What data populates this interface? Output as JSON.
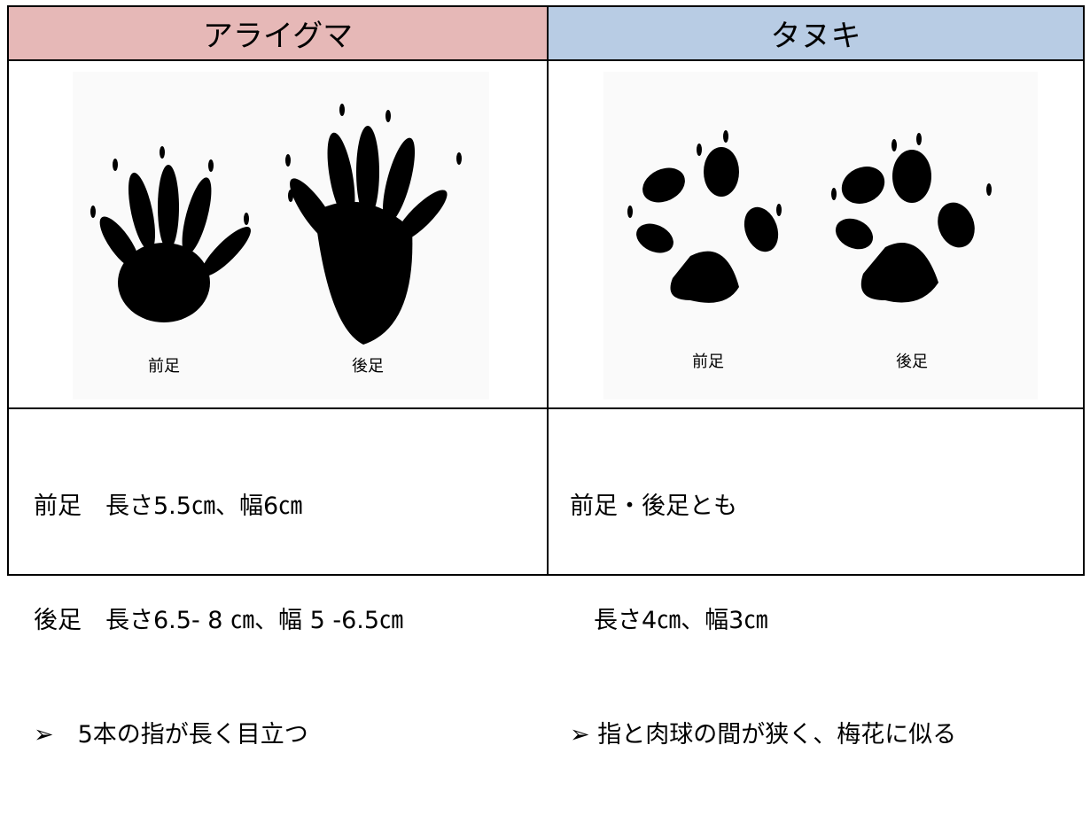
{
  "table": {
    "header": [
      "アライグマ",
      "タヌキ"
    ],
    "images": [
      {
        "labels": [
          "前足",
          "後足"
        ]
      },
      {
        "labels": [
          "前足",
          "後足"
        ]
      }
    ],
    "notes": [
      [
        "前足　長さ5.5㎝、幅6㎝",
        "後足　長さ6.5- 8 ㎝、幅 5 -6.5㎝",
        "➢　5本の指が長く目立つ"
      ],
      [
        "前足・後足とも",
        "　長さ4㎝、幅3㎝",
        "➢ 指と肉球の間が狭く、梅花に似る"
      ]
    ]
  }
}
